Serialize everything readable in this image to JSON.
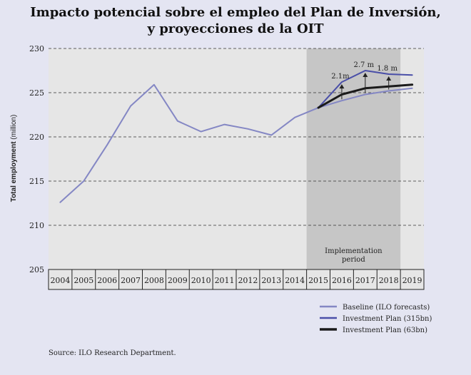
{
  "chart_data": {
    "type": "line",
    "title": [
      "Impacto potencial sobre el empleo del Plan de Inversión,",
      "y proyecciones de la OIT"
    ],
    "ylabel": "Total employment",
    "ylabel_unit": "(million)",
    "ylim": [
      205,
      230
    ],
    "yticks": [
      205,
      210,
      215,
      220,
      225,
      230
    ],
    "categories": [
      "2004",
      "2005",
      "2006",
      "2007",
      "2008",
      "2009",
      "2010",
      "2011",
      "2012",
      "2013",
      "2014",
      "2015",
      "2016",
      "2017",
      "2018",
      "2019"
    ],
    "shaded_region": {
      "from": "2015",
      "to": "2018",
      "label": [
        "Implementation",
        "period"
      ]
    },
    "series": [
      {
        "name": "Baseline (ILO forecasts)",
        "color": "#8487c4",
        "width": 2,
        "values": [
          212.6,
          215.0,
          219.1,
          223.5,
          225.9,
          221.8,
          220.6,
          221.4,
          220.9,
          220.2,
          222.2,
          223.3,
          224.1,
          224.8,
          225.2,
          225.5
        ]
      },
      {
        "name": "Investment Plan (315bn)",
        "color": "#4a4fa8",
        "width": 2,
        "values": [
          null,
          null,
          null,
          null,
          null,
          null,
          null,
          null,
          null,
          null,
          null,
          223.3,
          226.2,
          227.5,
          227.1,
          227.0
        ]
      },
      {
        "name": "Investment Plan (63bn)",
        "color": "#1a1a1a",
        "width": 3,
        "values": [
          null,
          null,
          null,
          null,
          null,
          null,
          null,
          null,
          null,
          null,
          null,
          223.3,
          224.8,
          225.5,
          225.7,
          225.9
        ]
      }
    ],
    "annotations": [
      {
        "label": "2.1m",
        "year": "2016"
      },
      {
        "label": "2.7 m",
        "year": "2017"
      },
      {
        "label": "1.8 m",
        "year": "2018"
      }
    ],
    "grid": "horizontal-dashed",
    "legend_position": "bottom-right"
  },
  "source": "Source: ILO Research Department."
}
